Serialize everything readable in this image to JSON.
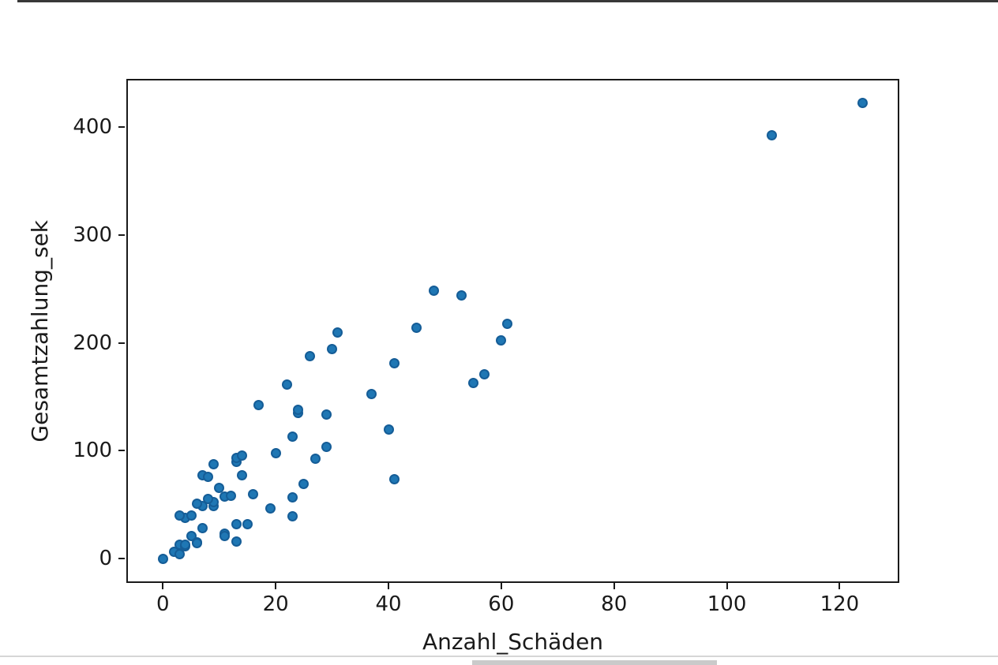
{
  "chart_data": {
    "type": "scatter",
    "title": "",
    "xlabel": "Anzahl_Schäden",
    "ylabel": "Gesamtzahlung_sek",
    "x_ticks": [
      0,
      20,
      40,
      60,
      80,
      100,
      120
    ],
    "y_ticks": [
      0,
      100,
      200,
      300,
      400
    ],
    "xlim": [
      -6.2,
      130.3
    ],
    "ylim": [
      -21.1,
      443.3
    ],
    "grid": false,
    "legend": null,
    "point_color": "#1f77b4",
    "axis_color": "#1a1a1a",
    "background_color": "#ffffff",
    "points": [
      [
        108,
        392.5
      ],
      [
        19,
        46.2
      ],
      [
        13,
        15.7
      ],
      [
        124,
        422.2
      ],
      [
        40,
        119.4
      ],
      [
        57,
        170.9
      ],
      [
        23,
        56.9
      ],
      [
        14,
        77.5
      ],
      [
        45,
        214.0
      ],
      [
        10,
        65.3
      ],
      [
        5,
        20.9
      ],
      [
        48,
        248.1
      ],
      [
        11,
        23.5
      ],
      [
        23,
        39.6
      ],
      [
        7,
        48.8
      ],
      [
        2,
        6.6
      ],
      [
        24,
        134.9
      ],
      [
        6,
        50.9
      ],
      [
        3,
        4.4
      ],
      [
        23,
        113.0
      ],
      [
        6,
        14.8
      ],
      [
        9,
        48.7
      ],
      [
        9,
        52.1
      ],
      [
        3,
        13.2
      ],
      [
        29,
        103.9
      ],
      [
        7,
        77.5
      ],
      [
        4,
        11.8
      ],
      [
        20,
        98.1
      ],
      [
        7,
        27.9
      ],
      [
        4,
        38.1
      ],
      [
        0,
        0.0
      ],
      [
        25,
        69.2
      ],
      [
        6,
        14.6
      ],
      [
        5,
        40.3
      ],
      [
        22,
        161.5
      ],
      [
        11,
        57.2
      ],
      [
        61,
        217.6
      ],
      [
        12,
        58.1
      ],
      [
        4,
        12.6
      ],
      [
        16,
        59.6
      ],
      [
        13,
        89.9
      ],
      [
        60,
        202.4
      ],
      [
        41,
        181.3
      ],
      [
        37,
        152.8
      ],
      [
        55,
        162.8
      ],
      [
        41,
        73.4
      ],
      [
        11,
        21.3
      ],
      [
        27,
        92.6
      ],
      [
        8,
        76.1
      ],
      [
        3,
        39.9
      ],
      [
        17,
        142.1
      ],
      [
        13,
        93.0
      ],
      [
        13,
        31.9
      ],
      [
        15,
        32.1
      ],
      [
        8,
        55.6
      ],
      [
        29,
        133.3
      ],
      [
        30,
        194.5
      ],
      [
        24,
        137.9
      ],
      [
        9,
        87.4
      ],
      [
        31,
        209.8
      ],
      [
        14,
        95.5
      ],
      [
        53,
        244.1
      ],
      [
        26,
        187.5
      ]
    ]
  }
}
